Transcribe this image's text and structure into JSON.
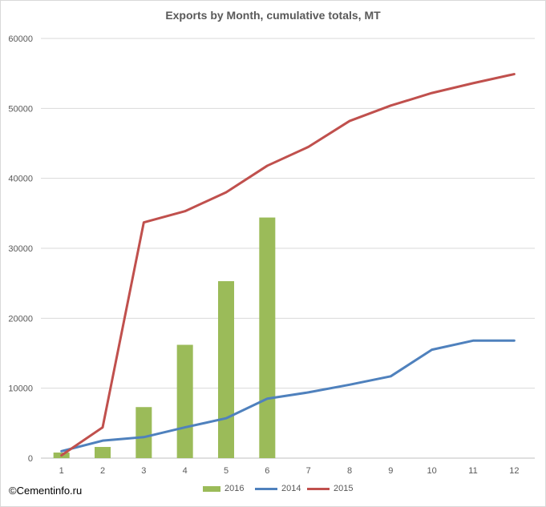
{
  "chart_data": {
    "type": "bar",
    "title": "Exports by Month, cumulative totals, MT",
    "xlabel": "",
    "ylabel": "",
    "categories": [
      "1",
      "2",
      "3",
      "4",
      "5",
      "6",
      "7",
      "8",
      "9",
      "10",
      "11",
      "12"
    ],
    "ylim": [
      0,
      60000
    ],
    "yticks": [
      0,
      10000,
      20000,
      30000,
      40000,
      50000,
      60000
    ],
    "ytick_labels": [
      "0",
      "10000",
      "20000",
      "30000",
      "40000",
      "50000",
      "60000"
    ],
    "grid": true,
    "legend_position": "bottom",
    "series": [
      {
        "name": "2016",
        "kind": "bar",
        "color": "#9bbb59",
        "values": [
          800,
          1600,
          7300,
          16200,
          25300,
          34400,
          null,
          null,
          null,
          null,
          null,
          null
        ]
      },
      {
        "name": "2014",
        "kind": "line",
        "color": "#4f81bd",
        "values": [
          1000,
          2500,
          3000,
          4400,
          5700,
          8500,
          9400,
          10500,
          11700,
          15500,
          16800,
          16800
        ]
      },
      {
        "name": "2015",
        "kind": "line",
        "color": "#c0504d",
        "values": [
          400,
          4400,
          33700,
          35300,
          38000,
          41800,
          44500,
          48200,
          50400,
          52200,
          53600,
          54900
        ]
      }
    ]
  },
  "watermark": "©Cementinfo.ru"
}
